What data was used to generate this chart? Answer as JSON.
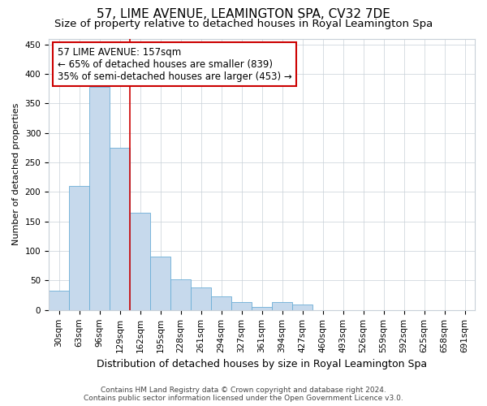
{
  "title": "57, LIME AVENUE, LEAMINGTON SPA, CV32 7DE",
  "subtitle": "Size of property relative to detached houses in Royal Leamington Spa",
  "xlabel": "Distribution of detached houses by size in Royal Leamington Spa",
  "ylabel": "Number of detached properties",
  "footer_line1": "Contains HM Land Registry data © Crown copyright and database right 2024.",
  "footer_line2": "Contains public sector information licensed under the Open Government Licence v3.0.",
  "bin_labels": [
    "30sqm",
    "63sqm",
    "96sqm",
    "129sqm",
    "162sqm",
    "195sqm",
    "228sqm",
    "261sqm",
    "294sqm",
    "327sqm",
    "361sqm",
    "394sqm",
    "427sqm",
    "460sqm",
    "493sqm",
    "526sqm",
    "559sqm",
    "592sqm",
    "625sqm",
    "658sqm",
    "691sqm"
  ],
  "bar_values": [
    33,
    210,
    378,
    275,
    165,
    90,
    52,
    38,
    23,
    13,
    5,
    14,
    10,
    0,
    0,
    0,
    0,
    0,
    0,
    0,
    0
  ],
  "bar_color": "#c6d9ec",
  "bar_edge_color": "#6baed6",
  "vline_x": 3.5,
  "vline_color": "#cc0000",
  "annotation_text_line1": "57 LIME AVENUE: 157sqm",
  "annotation_text_line2": "← 65% of detached houses are smaller (839)",
  "annotation_text_line3": "35% of semi-detached houses are larger (453) →",
  "annotation_box_color": "#ffffff",
  "annotation_box_edge": "#cc0000",
  "ylim": [
    0,
    460
  ],
  "yticks": [
    0,
    50,
    100,
    150,
    200,
    250,
    300,
    350,
    400,
    450
  ],
  "title_fontsize": 11,
  "subtitle_fontsize": 9.5,
  "xlabel_fontsize": 9,
  "ylabel_fontsize": 8,
  "tick_fontsize": 7.5,
  "annotation_fontsize": 8.5,
  "footer_fontsize": 6.5,
  "background_color": "#ffffff",
  "grid_color": "#c8d0d8"
}
